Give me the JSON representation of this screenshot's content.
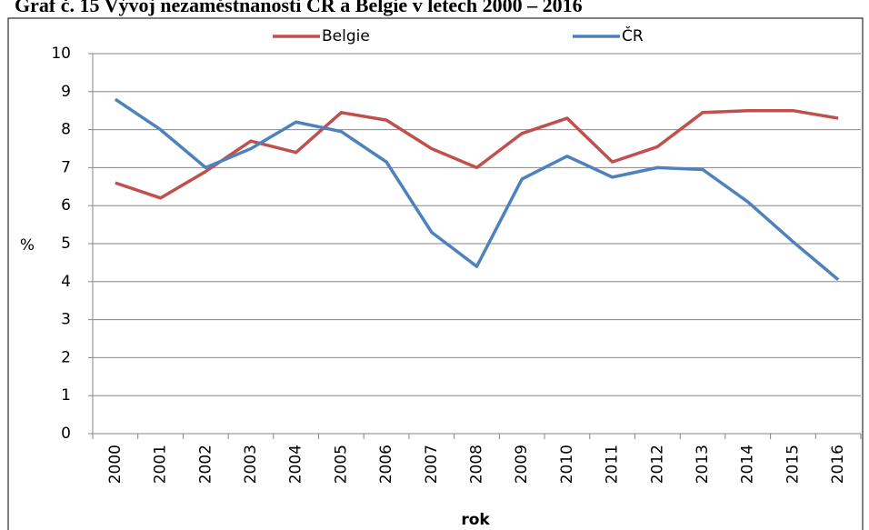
{
  "chart_data": {
    "type": "line",
    "title": "Graf č. 15 Vývoj nezaměstnanosti ČR a Belgie v letech 2000 – 2016",
    "y_label": "%",
    "x_label": "rok",
    "categories": [
      "2000",
      "2001",
      "2002",
      "2003",
      "2004",
      "2005",
      "2006",
      "2007",
      "2008",
      "2009",
      "2010",
      "2011",
      "2012",
      "2013",
      "2014",
      "2015",
      "2016"
    ],
    "series": [
      {
        "name": "Belgie",
        "color": "#c0504d",
        "values": [
          6.6,
          6.2,
          6.9,
          7.7,
          7.4,
          8.45,
          8.25,
          7.5,
          7.0,
          7.9,
          8.3,
          7.15,
          7.55,
          8.45,
          8.5,
          8.5,
          8.3
        ]
      },
      {
        "name": "ČR",
        "color": "#4f81bd",
        "values": [
          8.8,
          8.0,
          7.0,
          7.5,
          8.2,
          7.95,
          7.15,
          5.3,
          4.4,
          6.7,
          7.3,
          6.75,
          7.0,
          6.95,
          6.1,
          5.05,
          4.05
        ]
      }
    ],
    "ylim": [
      0,
      10
    ],
    "yticks": [
      0,
      1,
      2,
      3,
      4,
      5,
      6,
      7,
      8,
      9,
      10
    ],
    "grid": true,
    "legend": "top"
  }
}
